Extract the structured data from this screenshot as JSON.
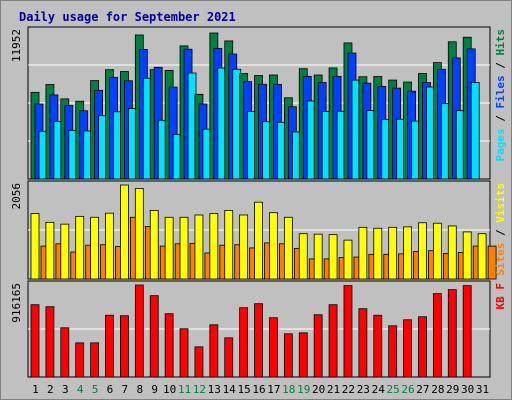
{
  "chart_data": {
    "type": "bar",
    "title": "Daily usage for September 2021",
    "days": [
      "1",
      "2",
      "3",
      "4",
      "5",
      "6",
      "7",
      "8",
      "9",
      "10",
      "11",
      "12",
      "13",
      "14",
      "15",
      "16",
      "17",
      "18",
      "19",
      "20",
      "21",
      "22",
      "23",
      "24",
      "25",
      "26",
      "27",
      "28",
      "29",
      "30",
      "31"
    ],
    "weekend_days": [
      "4",
      "5",
      "11",
      "12",
      "18",
      "19",
      "25",
      "26"
    ],
    "colors": {
      "hits": "#008040",
      "files": "#0040ff",
      "pages": "#00e0ff",
      "visits": "#ffff00",
      "sites": "#ff8000",
      "kbf": "#ff0000",
      "plot_bg": "#c0c0c0",
      "grid": "#ffffff",
      "title": "#0000a0",
      "weekday_tick": "#000000",
      "weekend_tick": "#008040",
      "separator": "#000000"
    },
    "panels": [
      {
        "name": "hits-files-pages",
        "ytick": "11952",
        "ylim": [
          0,
          11952
        ],
        "legend": [
          {
            "text": "Pages",
            "color": "#00e0ff"
          },
          {
            "text": " / ",
            "color": "#000000"
          },
          {
            "text": "Files",
            "color": "#0040ff"
          },
          {
            "text": " / ",
            "color": "#000000"
          },
          {
            "text": "Hits",
            "color": "#008040"
          }
        ],
        "series": [
          {
            "name": "Hits",
            "color": "#008040",
            "values": [
              7000,
              7630,
              6470,
              6280,
              7950,
              8830,
              8680,
              11630,
              8830,
              8770,
              10750,
              6840,
              11790,
              11150,
              8520,
              8360,
              8400,
              6560,
              8910,
              8400,
              8970,
              10990,
              8260,
              8280,
              7990,
              7830,
              8520,
              9400,
              11080,
              11450,
              0
            ]
          },
          {
            "name": "Files",
            "color": "#0040ff",
            "values": [
              6060,
              6790,
              5940,
              5510,
              7160,
              8210,
              7930,
              10460,
              9020,
              7420,
              10480,
              6060,
              10550,
              10090,
              7860,
              7650,
              7640,
              5840,
              8290,
              7790,
              8290,
              10170,
              7740,
              7480,
              7340,
              7090,
              7790,
              8860,
              9780,
              10510,
              0
            ]
          },
          {
            "name": "Pages",
            "color": "#00e0ff",
            "values": [
              3850,
              4660,
              3930,
              3880,
              5110,
              5430,
              5700,
              8140,
              4740,
              3600,
              8560,
              4030,
              8960,
              8860,
              5450,
              4630,
              4580,
              3800,
              6300,
              5460,
              5470,
              7990,
              5530,
              4820,
              4830,
              4680,
              7430,
              6100,
              5520,
              7790,
              0
            ]
          }
        ]
      },
      {
        "name": "visits-sites",
        "ytick": "2056",
        "ylim": [
          0,
          2056
        ],
        "legend": [
          {
            "text": "Sites",
            "color": "#ff8000"
          },
          {
            "text": " / ",
            "color": "#000000"
          },
          {
            "text": "Visits",
            "color": "#ffff00"
          }
        ],
        "series": [
          {
            "name": "Visits",
            "color": "#ffff00",
            "values": [
              1430,
              1240,
              1200,
              1370,
              1350,
              1440,
              2056,
              1980,
              1500,
              1350,
              1350,
              1400,
              1430,
              1500,
              1400,
              1680,
              1450,
              1350,
              990,
              980,
              970,
              850,
              1130,
              1110,
              1130,
              1140,
              1230,
              1220,
              1160,
              1030,
              990
            ]
          },
          {
            "name": "Sites",
            "color": "#ff8000",
            "values": [
              720,
              770,
              590,
              740,
              750,
              710,
              1350,
              1150,
              720,
              770,
              780,
              570,
              740,
              750,
              680,
              790,
              770,
              670,
              440,
              440,
              470,
              480,
              540,
              540,
              550,
              600,
              620,
              560,
              580,
              720,
              720
            ]
          }
        ]
      },
      {
        "name": "kbf",
        "ytick": "916165",
        "ylim": [
          0,
          916165
        ],
        "legend": [
          {
            "text": "KB F",
            "color": "#ff0000"
          }
        ],
        "series": [
          {
            "name": "KB F",
            "color": "#ff0000",
            "values": [
              720000,
              700000,
              490000,
              340000,
              340000,
              615000,
              610000,
              916165,
              810000,
              630000,
              480000,
              300000,
              520000,
              390000,
              690000,
              730000,
              590000,
              430000,
              440000,
              620000,
              720000,
              910000,
              680000,
              615000,
              510000,
              570000,
              600000,
              830000,
              870000,
              910000,
              0
            ]
          }
        ]
      }
    ]
  }
}
